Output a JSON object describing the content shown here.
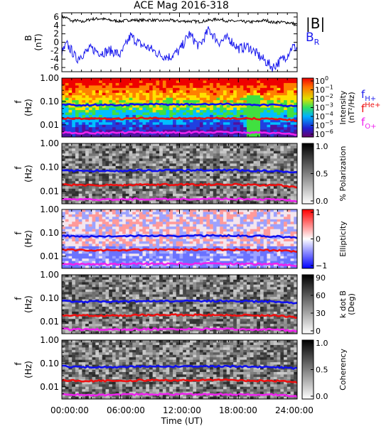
{
  "figure": {
    "title": "ACE Mag 2016-318",
    "xlabel": "Time (UT)",
    "xticks": [
      "00:00:00",
      "06:00:00",
      "12:00:00",
      "18:00:00",
      "24:00:00"
    ]
  },
  "legend_top": {
    "b_mag": "|B|",
    "b_r": "B",
    "b_r_sub": "R"
  },
  "legend_freq": [
    {
      "base": "f",
      "sub": "H+",
      "color": "#2222ee"
    },
    {
      "base": "f",
      "sub": "He+",
      "color": "#ee1111"
    },
    {
      "base": "f",
      "sub": "O+",
      "color": "#ee22ee"
    }
  ],
  "colors": {
    "b_mag": "#000000",
    "b_r": "#1a1aee",
    "f_h": "#1010ee",
    "f_he": "#ee1010",
    "f_o": "#ee22ee"
  },
  "panels": [
    {
      "id": "b",
      "ylabel": "B",
      "yunit": "(nT)",
      "yticks": [
        "6",
        "4",
        "2",
        "0",
        "-2",
        "-4",
        "-6"
      ]
    },
    {
      "id": "intensity",
      "ylabel": "f",
      "yunit": "(Hz)",
      "yticks": [
        "1.00",
        "0.10",
        "0.01"
      ],
      "cbar_label": "Intensity",
      "cbar_unit": "(nT²/Hz)",
      "cbar_ticks": [
        {
          "base": "10",
          "exp": "0"
        },
        {
          "base": "10",
          "exp": "−1"
        },
        {
          "base": "10",
          "exp": "−2"
        },
        {
          "base": "10",
          "exp": "−3"
        },
        {
          "base": "10",
          "exp": "−4"
        },
        {
          "base": "10",
          "exp": "−5"
        },
        {
          "base": "10",
          "exp": "−6"
        }
      ]
    },
    {
      "id": "polarization",
      "ylabel": "f",
      "yunit": "(Hz)",
      "yticks": [
        "1.00",
        "0.10",
        "0.01"
      ],
      "cbar_label": "% Polarization",
      "cbar_ticks": [
        "1.0",
        "0.5",
        "0.0"
      ]
    },
    {
      "id": "ellipticity",
      "ylabel": "f",
      "yunit": "(Hz)",
      "yticks": [
        "1.00",
        "0.10",
        "0.01"
      ],
      "cbar_label": "Ellipticity",
      "cbar_ticks": [
        "1",
        "0",
        "−1"
      ]
    },
    {
      "id": "kdotb",
      "ylabel": "f",
      "yunit": "(Hz)",
      "yticks": [
        "1.00",
        "0.10",
        "0.01"
      ],
      "cbar_label": "k dot B",
      "cbar_unit": "(Deg)",
      "cbar_ticks": [
        "90",
        "60",
        "30",
        "0"
      ]
    },
    {
      "id": "coherency",
      "ylabel": "f",
      "yunit": "(Hz)",
      "yticks": [
        "1.00",
        "0.10",
        "0.01"
      ],
      "cbar_label": "Coherency",
      "cbar_ticks": [
        "1.0",
        "0.5",
        "0.0"
      ]
    }
  ],
  "chart_data": {
    "type": "line",
    "title": "ACE Mag 2016-318",
    "xlabel": "Time (UT)",
    "x_range_hours": [
      0,
      24
    ],
    "b_field": {
      "ylim": [
        -7,
        7
      ],
      "x_hours": [
        0,
        0.5,
        1,
        1.5,
        2,
        3,
        4,
        5,
        6,
        7,
        8,
        9,
        10,
        11,
        12,
        13,
        14,
        15,
        16,
        17,
        18,
        19,
        20,
        20.5,
        21,
        21.5,
        22,
        23,
        23.5,
        24
      ],
      "series": [
        {
          "name": "|B|",
          "values": [
            6.0,
            5.8,
            5.0,
            5.2,
            4.8,
            5.5,
            5.6,
            5.2,
            5.0,
            5.3,
            5.2,
            5.3,
            5.1,
            5.2,
            5.0,
            5.0,
            4.9,
            5.2,
            5.5,
            5.0,
            5.0,
            4.8,
            4.9,
            5.2,
            5.1,
            4.7,
            4.8,
            4.7,
            4.5,
            4.2
          ]
        },
        {
          "name": "B_R",
          "values": [
            -2.5,
            -0.5,
            -2.0,
            -4.0,
            -3.0,
            -1.5,
            -2.5,
            -2.0,
            -3.0,
            1.5,
            -0.5,
            -1.5,
            -3.0,
            -3.5,
            -2.0,
            2.0,
            -1.0,
            3.0,
            0.0,
            1.0,
            -1.5,
            -1.0,
            -3.0,
            -4.0,
            -5.0,
            -6.0,
            -5.0,
            -3.0,
            -1.0,
            -1.5
          ]
        }
      ]
    },
    "frequency_ylim_hz": [
      0.003,
      1.0
    ],
    "frequency_x_hours": [
      0,
      2,
      4,
      6,
      8,
      10,
      12,
      14,
      16,
      18,
      20,
      22,
      24
    ],
    "frequency_series": [
      {
        "name": "f_H+",
        "values": [
          0.075,
          0.07,
          0.072,
          0.07,
          0.075,
          0.075,
          0.074,
          0.075,
          0.076,
          0.075,
          0.072,
          0.07,
          0.06
        ]
      },
      {
        "name": "f_He+",
        "values": [
          0.019,
          0.018,
          0.018,
          0.018,
          0.019,
          0.019,
          0.019,
          0.019,
          0.019,
          0.019,
          0.018,
          0.018,
          0.015
        ]
      },
      {
        "name": "f_O+",
        "values": [
          0.0047,
          0.0045,
          0.0045,
          0.0046,
          0.0047,
          0.0047,
          0.0047,
          0.0048,
          0.0048,
          0.0047,
          0.0046,
          0.0045,
          0.0038
        ]
      }
    ]
  }
}
